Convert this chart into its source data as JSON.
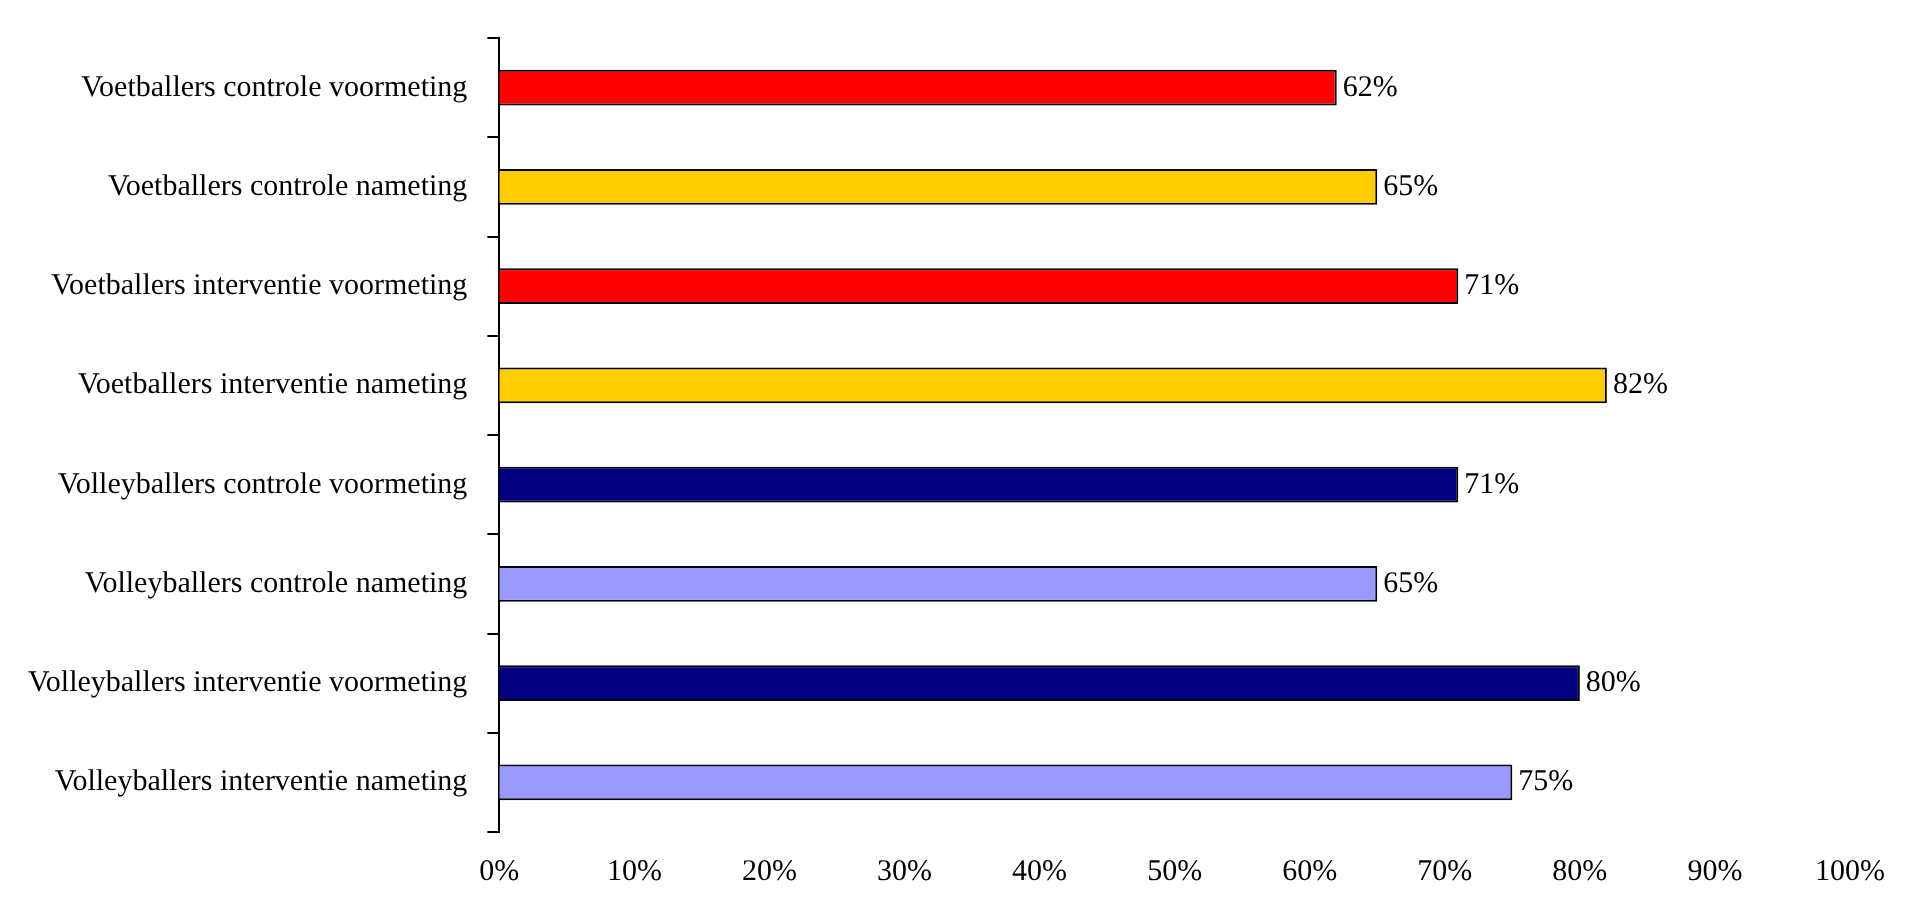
{
  "chart_data": {
    "type": "bar",
    "orientation": "horizontal",
    "categories": [
      "Voetballers controle voormeting",
      "Voetballers controle nameting",
      "Voetballers interventie voormeting",
      "Voetballers interventie nameting",
      "Volleyballers controle voormeting",
      "Volleyballers controle nameting",
      "Volleyballers interventie voormeting",
      "Volleyballers interventie nameting"
    ],
    "values": [
      62,
      65,
      71,
      82,
      71,
      65,
      80,
      75
    ],
    "colors": [
      "#ff0000",
      "#ffcc00",
      "#ff0000",
      "#ffcc00",
      "#000080",
      "#9999ff",
      "#000080",
      "#9999ff"
    ],
    "value_labels": [
      "62%",
      "65%",
      "71%",
      "82%",
      "71%",
      "65%",
      "80%",
      "75%"
    ],
    "xlim": [
      0,
      100
    ],
    "xticks": [
      {
        "value": 0,
        "label": "0%"
      },
      {
        "value": 10,
        "label": "10%"
      },
      {
        "value": 20,
        "label": "20%"
      },
      {
        "value": 30,
        "label": "30%"
      },
      {
        "value": 40,
        "label": "40%"
      },
      {
        "value": 50,
        "label": "50%"
      },
      {
        "value": 60,
        "label": "60%"
      },
      {
        "value": 70,
        "label": "70%"
      },
      {
        "value": 80,
        "label": "80%"
      },
      {
        "value": 90,
        "label": "90%"
      },
      {
        "value": 100,
        "label": "100%"
      }
    ],
    "grid": false,
    "legend": false
  }
}
